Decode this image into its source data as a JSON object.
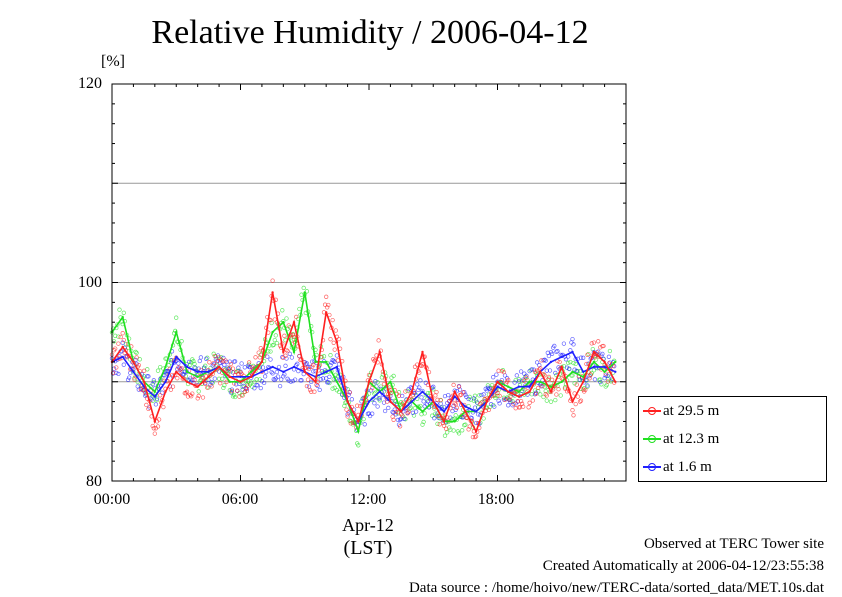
{
  "chart_data": {
    "type": "line",
    "title": "Relative Humidity / 2006-04-12",
    "ylabel": "[%]",
    "xlabel": "(LST)",
    "date_label": "Apr-12",
    "ylim": [
      80,
      120
    ],
    "xlim": [
      0,
      24
    ],
    "yticks": [
      "80",
      "100",
      "120"
    ],
    "xticks": [
      "00:00",
      "06:00",
      "12:00",
      "18:00"
    ],
    "grid": true,
    "legend_position": "right, below plot top",
    "x_hours": [
      0,
      0.5,
      1,
      1.5,
      2,
      2.5,
      3,
      3.5,
      4,
      4.5,
      5,
      5.5,
      6,
      6.5,
      7,
      7.5,
      8,
      8.5,
      9,
      9.5,
      10,
      10.5,
      11,
      11.5,
      12,
      12.5,
      13,
      13.5,
      14,
      14.5,
      15,
      15.5,
      16,
      16.5,
      17,
      17.5,
      18,
      18.5,
      19,
      19.5,
      20,
      20.5,
      21,
      21.5,
      22,
      22.5,
      23,
      23.5
    ],
    "series": [
      {
        "name": "at 29.5 m",
        "color": "#ff2020",
        "values": [
          92,
          93.5,
          92,
          90,
          86,
          89,
          91,
          90,
          89.5,
          90.5,
          91.5,
          90.5,
          90,
          90.5,
          92,
          99,
          93,
          96,
          91,
          90,
          97,
          94,
          88,
          86,
          90,
          93,
          88,
          87,
          89,
          93,
          88,
          86,
          89,
          87,
          85,
          88,
          90,
          89,
          88.5,
          89,
          91,
          89,
          91.5,
          88,
          90,
          93,
          92,
          90
        ]
      },
      {
        "name": "at 12.3 m",
        "color": "#20e020",
        "values": [
          95,
          96.5,
          92,
          90,
          89,
          91.5,
          95,
          91,
          90.5,
          91,
          91.5,
          90,
          90,
          91,
          92,
          95,
          96,
          93,
          99,
          92,
          92,
          90,
          88,
          85,
          90,
          89,
          90,
          87,
          88,
          87,
          88,
          86,
          86,
          87,
          87,
          88,
          90,
          89.5,
          89,
          90,
          90,
          89.5,
          90,
          91,
          90.5,
          92,
          91,
          92
        ]
      },
      {
        "name": "at 1.6 m",
        "color": "#2020ff",
        "values": [
          92,
          92.5,
          91,
          89.5,
          88.5,
          90,
          92.5,
          91.5,
          91,
          91,
          91.5,
          90.5,
          90.5,
          90.5,
          91,
          91.5,
          91,
          91.5,
          91,
          90.5,
          91,
          91.5,
          88,
          86,
          88,
          89,
          88,
          87,
          88,
          89,
          88,
          87,
          88.5,
          87.5,
          87,
          88,
          89.5,
          89,
          89.5,
          89.5,
          91,
          92,
          92.5,
          93,
          91,
          91.5,
          91.5,
          91
        ]
      }
    ]
  },
  "footer": {
    "observed": "Observed at TERC Tower site",
    "created": "Created Automatically at 2006-04-12/23:55:38",
    "source": "Data source : /home/hoivo/new/TERC-data/sorted_data/MET.10s.dat"
  }
}
